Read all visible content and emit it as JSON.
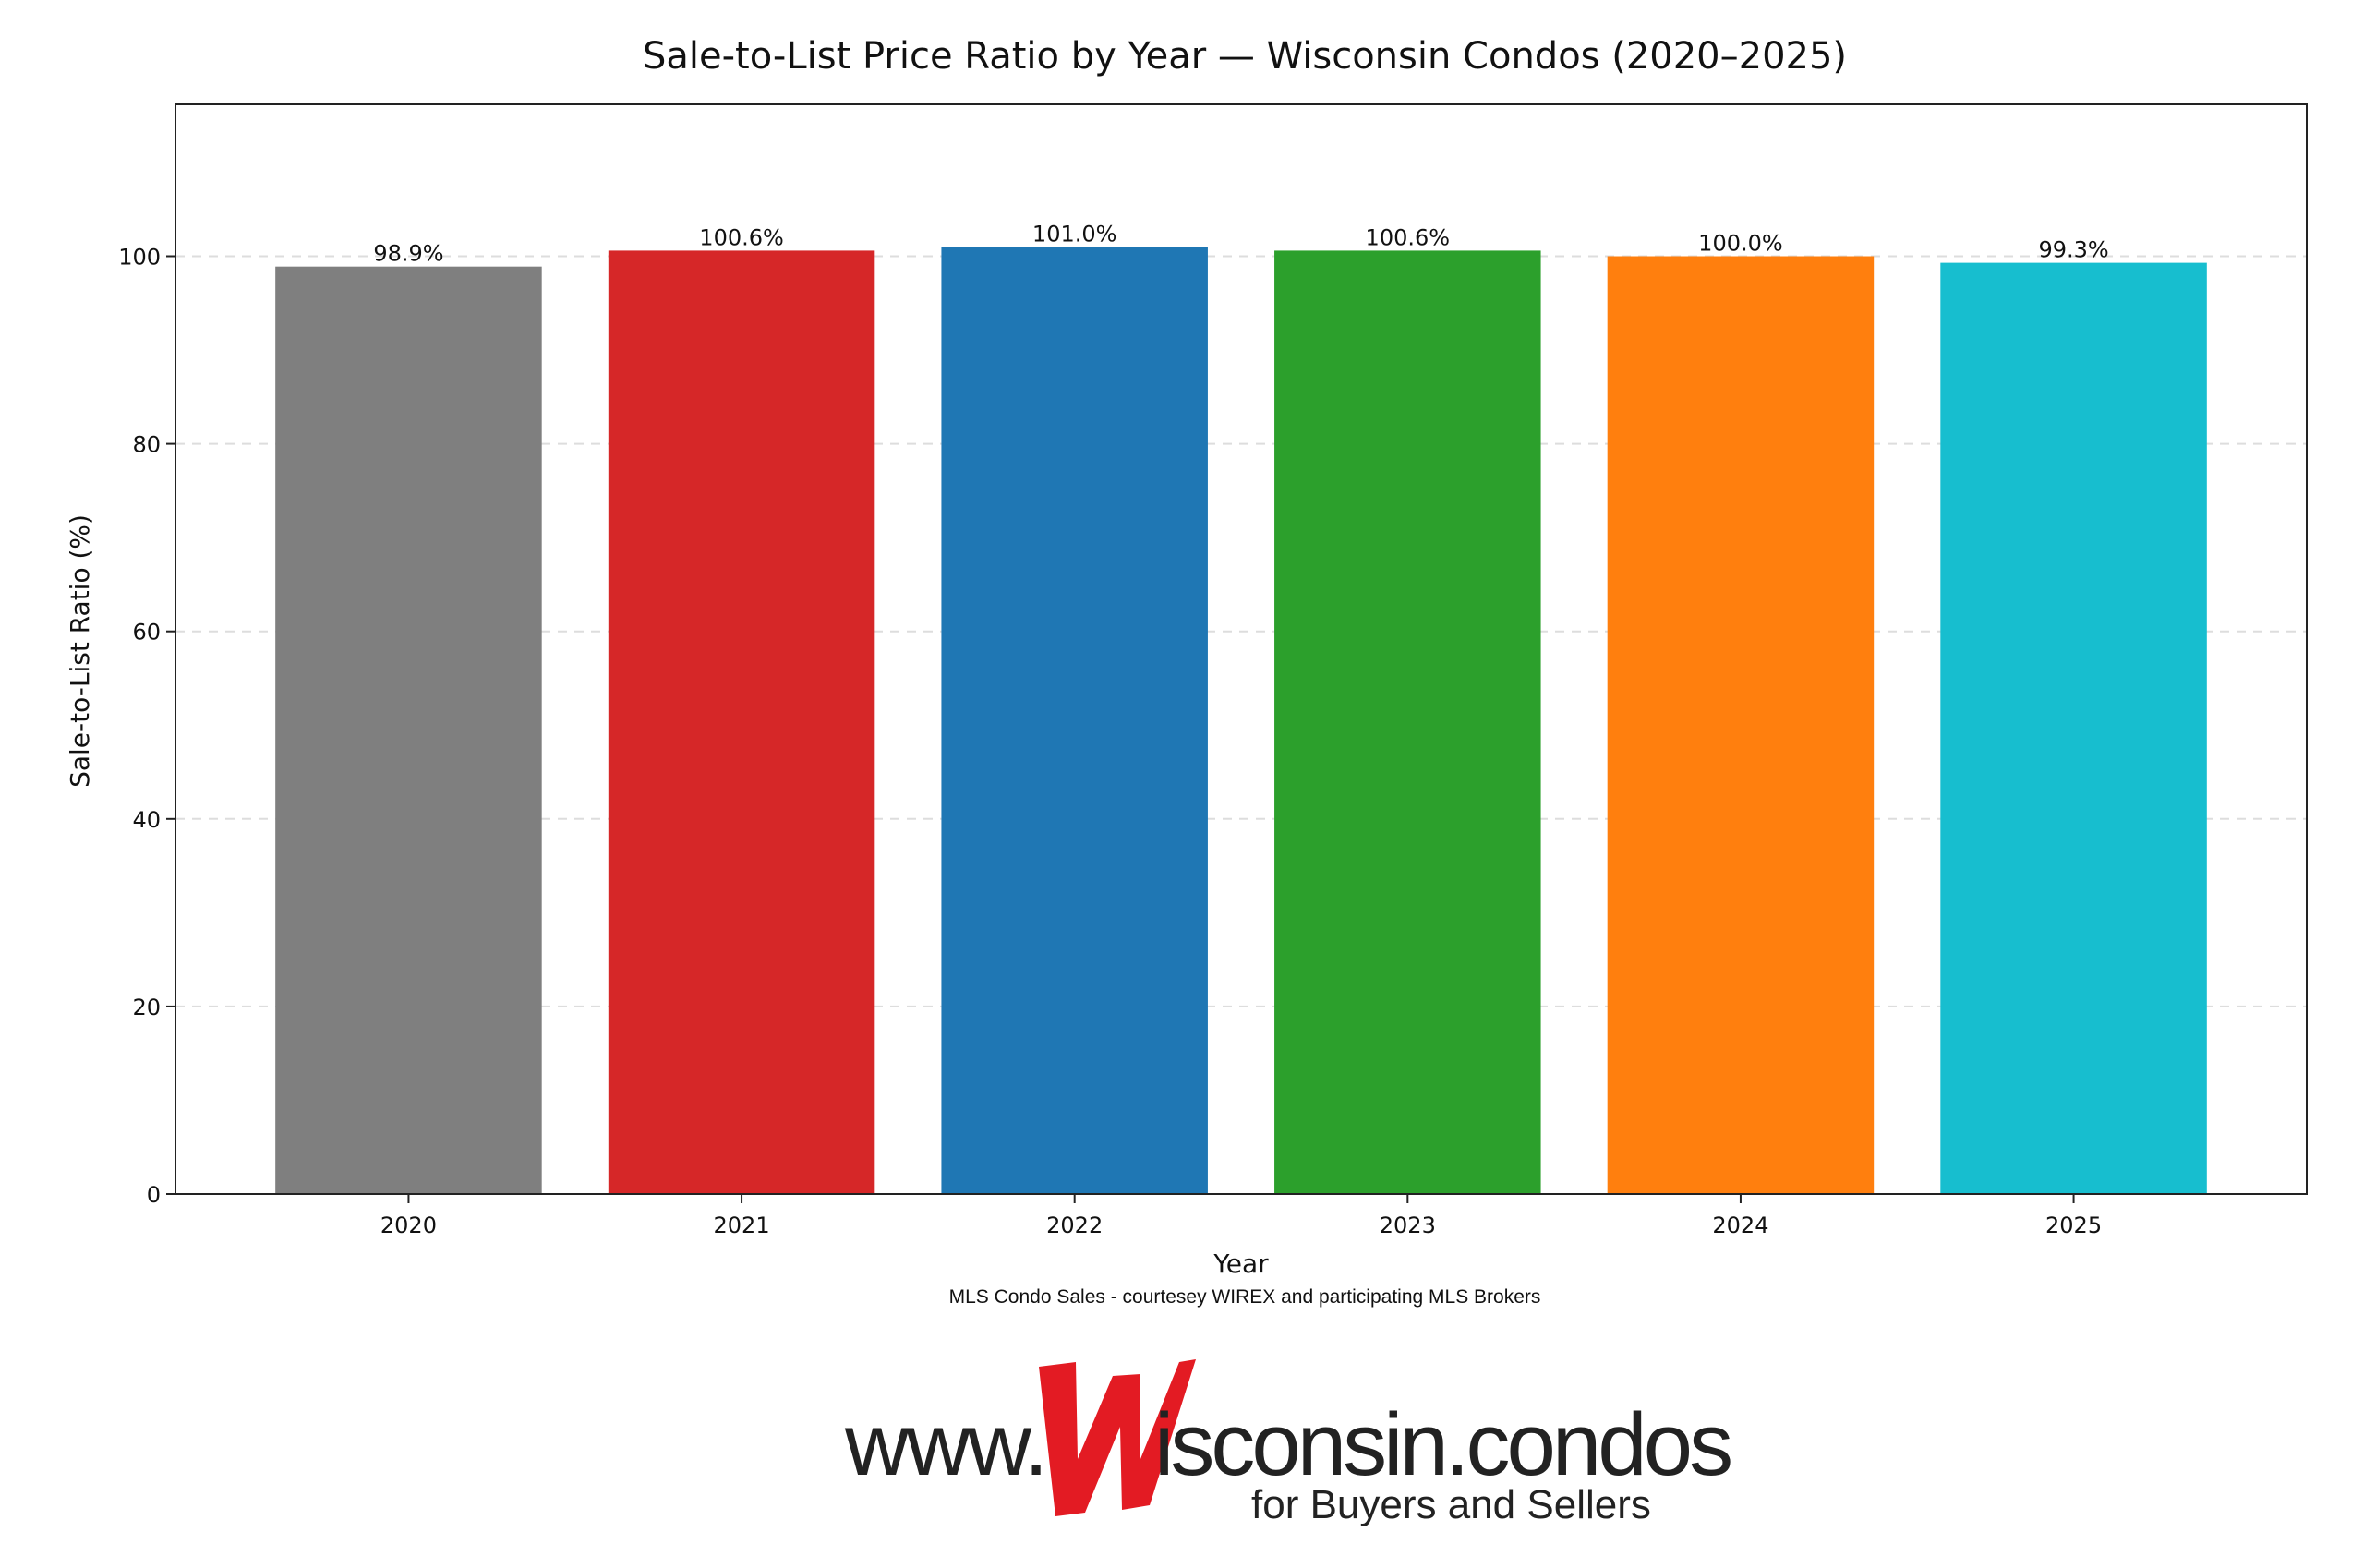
{
  "chart_data": {
    "type": "bar",
    "title": "Sale-to-List Price Ratio by Year — Wisconsin Condos (2020–2025)",
    "xlabel": "Year",
    "ylabel": "Sale-to-List Ratio (%)",
    "caption": "MLS Condo Sales - courtesey WIREX and participating MLS Brokers",
    "categories": [
      "2020",
      "2021",
      "2022",
      "2023",
      "2024",
      "2025"
    ],
    "values": [
      98.9,
      100.6,
      101.0,
      100.6,
      100.0,
      99.3
    ],
    "data_labels": [
      "98.9%",
      "100.6%",
      "101.0%",
      "100.6%",
      "100.0%",
      "99.3%"
    ],
    "colors": [
      "#7f7f7f",
      "#d62728",
      "#1f77b4",
      "#2ca02c",
      "#ff7f0e",
      "#17becf"
    ],
    "ylim": [
      0,
      116.2
    ],
    "yticks": [
      0,
      20,
      40,
      60,
      80,
      100
    ],
    "grid": true
  },
  "logo": {
    "prefix": "www.",
    "letter": "W",
    "suffix": "isconsin.condos",
    "tagline": "for Buyers and Sellers"
  }
}
